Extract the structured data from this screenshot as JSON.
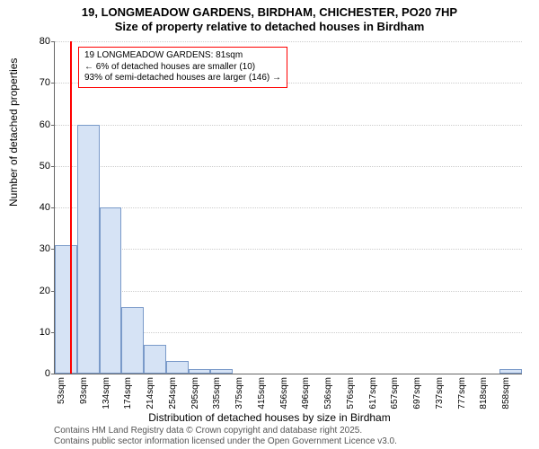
{
  "header": {
    "title_main": "19, LONGMEADOW GARDENS, BIRDHAM, CHICHESTER, PO20 7HP",
    "title_sub": "Size of property relative to detached houses in Birdham"
  },
  "chart": {
    "type": "histogram",
    "ylabel": "Number of detached properties",
    "xlabel": "Distribution of detached houses by size in Birdham",
    "ylim": [
      0,
      80
    ],
    "ytick_step": 10,
    "bar_fill": "#d6e3f5",
    "bar_stroke": "#7a9ac9",
    "grid_color": "#cccccc",
    "axis_color": "#666666",
    "marker_color": "#ff0000",
    "background_color": "#ffffff",
    "label_fontsize": 12,
    "tick_fontsize": 11,
    "xtick_fontsize": 10,
    "bar_width_ratio": 1.0,
    "x_labels": [
      "53sqm",
      "93sqm",
      "134sqm",
      "174sqm",
      "214sqm",
      "254sqm",
      "295sqm",
      "335sqm",
      "375sqm",
      "415sqm",
      "456sqm",
      "496sqm",
      "536sqm",
      "576sqm",
      "617sqm",
      "657sqm",
      "697sqm",
      "737sqm",
      "777sqm",
      "818sqm",
      "858sqm"
    ],
    "values": [
      31,
      60,
      40,
      16,
      7,
      3,
      1,
      1,
      0,
      0,
      0,
      0,
      0,
      0,
      0,
      0,
      0,
      0,
      0,
      0,
      1
    ],
    "marker_bin_index": 0,
    "marker_position_in_bin": 0.7,
    "annotation": {
      "line1": "19 LONGMEADOW GARDENS: 81sqm",
      "line2": "← 6% of detached houses are smaller (10)",
      "line3": "93% of semi-detached houses are larger (146) →"
    }
  },
  "footer": {
    "line1": "Contains HM Land Registry data © Crown copyright and database right 2025.",
    "line2": "Contains public sector information licensed under the Open Government Licence v3.0."
  }
}
